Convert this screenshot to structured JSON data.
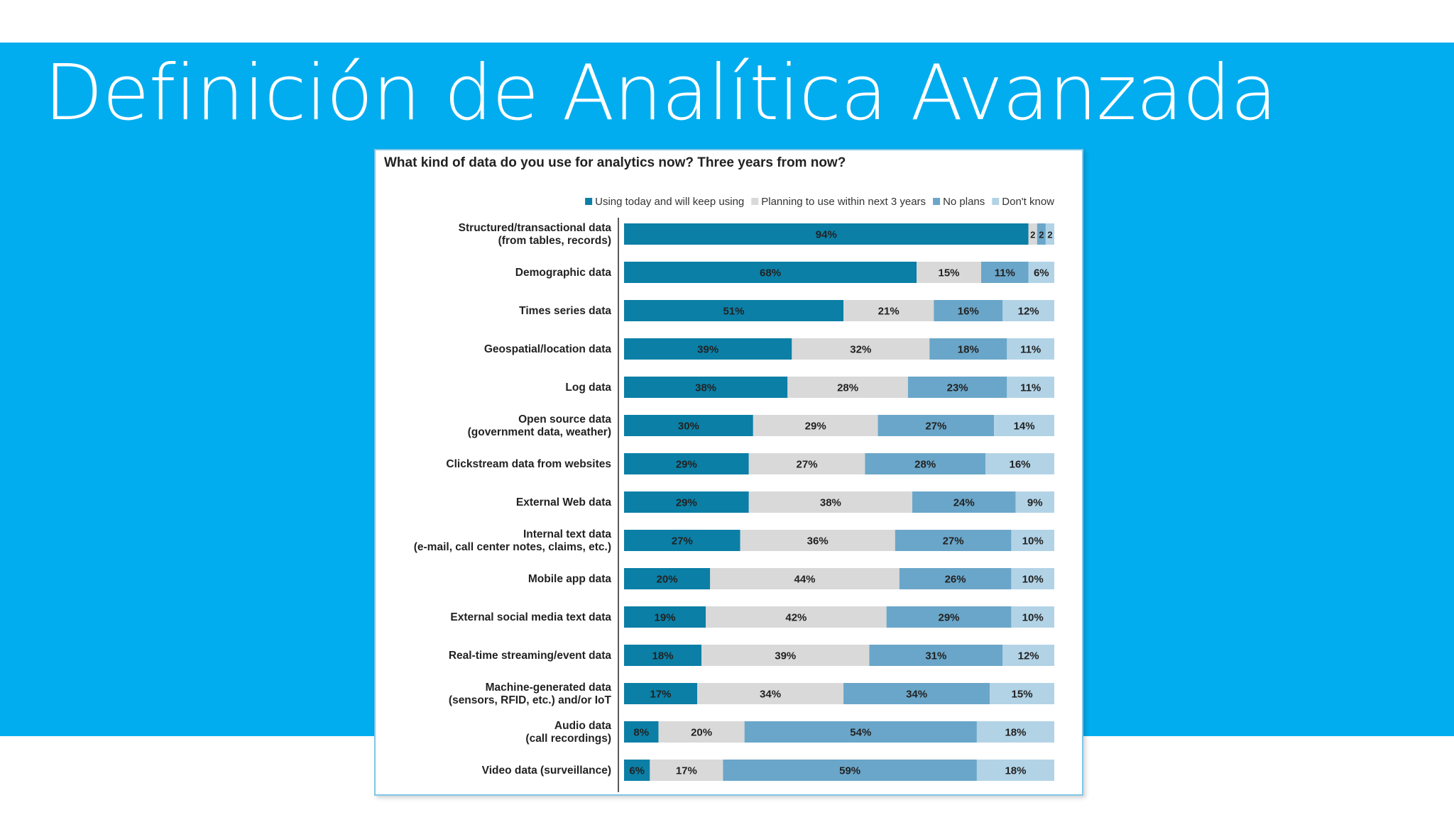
{
  "slide": {
    "title": "Definición de Analítica Avanzada"
  },
  "chart_data": {
    "type": "bar",
    "orientation": "horizontal",
    "stacked": true,
    "title": "What kind of data do you use for analytics now? Three years from now?",
    "legend_position": "top-right",
    "xlim": [
      0,
      100
    ],
    "unit": "%",
    "categories": [
      "Structured/transactional data\n(from tables, records)",
      "Demographic data",
      "Times series data",
      "Geospatial/location data",
      "Log data",
      "Open source data\n(government data, weather)",
      "Clickstream data from websites",
      "External Web data",
      "Internal text data\n(e-mail, call center notes, claims, etc.)",
      "Mobile app data",
      "External social media text data",
      "Real-time streaming/event data",
      "Machine-generated data\n(sensors, RFID, etc.) and/or IoT",
      "Audio data\n(call recordings)",
      "Video data (surveillance)"
    ],
    "series": [
      {
        "name": "Using today and will keep using",
        "color": "#0b7fa6",
        "label_color": "#ffffff",
        "values": [
          94,
          68,
          51,
          39,
          38,
          30,
          29,
          29,
          27,
          20,
          19,
          18,
          17,
          8,
          6
        ],
        "labels": [
          "94%",
          "68%",
          "51%",
          "39%",
          "38%",
          "30%",
          "29%",
          "29%",
          "27%",
          "20%",
          "19%",
          "18%",
          "17%",
          "8%",
          "6%"
        ]
      },
      {
        "name": "Planning to use within next 3 years",
        "color": "#d9d9d9",
        "label_color": "#333333",
        "values": [
          2,
          15,
          21,
          32,
          28,
          29,
          27,
          38,
          36,
          44,
          42,
          39,
          34,
          20,
          17
        ],
        "labels": [
          "2",
          "15%",
          "21%",
          "32%",
          "28%",
          "29%",
          "27%",
          "38%",
          "36%",
          "44%",
          "42%",
          "39%",
          "34%",
          "20%",
          "17%"
        ]
      },
      {
        "name": "No plans",
        "color": "#6aa6c9",
        "label_color": "#1d3f55",
        "values": [
          2,
          11,
          16,
          18,
          23,
          27,
          28,
          24,
          27,
          26,
          29,
          31,
          34,
          54,
          59
        ],
        "labels": [
          "2",
          "11%",
          "16%",
          "18%",
          "23%",
          "27%",
          "28%",
          "24%",
          "27%",
          "26%",
          "29%",
          "31%",
          "34%",
          "54%",
          "59%"
        ]
      },
      {
        "name": "Don't know",
        "color": "#b2d3e6",
        "label_color": "#333333",
        "values": [
          2,
          6,
          12,
          11,
          11,
          14,
          16,
          9,
          10,
          10,
          10,
          12,
          15,
          18,
          18
        ],
        "labels": [
          "2",
          "6%",
          "12%",
          "11%",
          "11%",
          "14%",
          "16%",
          "9%",
          "10%",
          "10%",
          "10%",
          "12%",
          "15%",
          "18%",
          "18%"
        ]
      }
    ]
  }
}
